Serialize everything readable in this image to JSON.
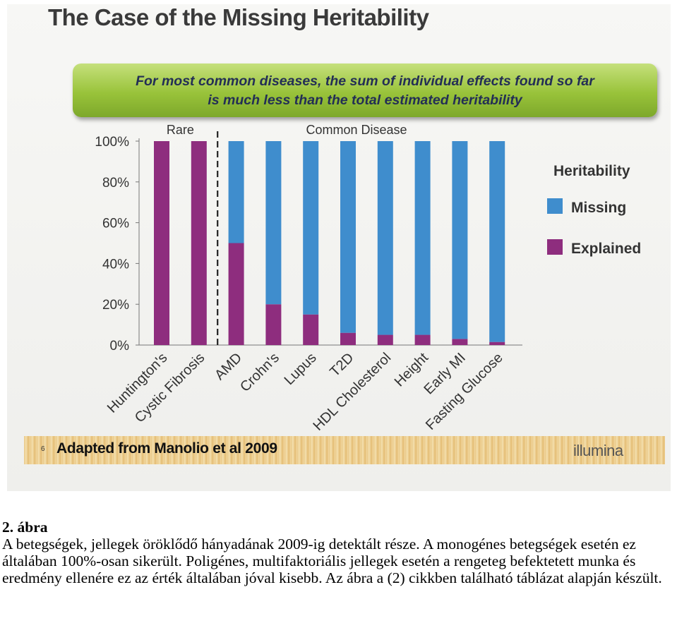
{
  "slide": {
    "title": "The Case of the Missing Heritability",
    "banner_line1": "For most common diseases, the sum of individual effects found so far",
    "banner_line2": "is much less than the total estimated heritability",
    "slide_number": "6",
    "source_note": "Adapted from Manolio et al 2009",
    "brand_logo": "illumina"
  },
  "colors": {
    "missing": "#3f8dcd",
    "explained": "#8e2d7e",
    "banner": "#99c33a"
  },
  "chart_data": {
    "type": "bar",
    "stacked": true,
    "categories": [
      "Huntington's",
      "Cystic Fibrosis",
      "AMD",
      "Crohn's",
      "Lupus",
      "T2D",
      "HDL Cholesterol",
      "Height",
      "Early MI",
      "Fasting Glucose"
    ],
    "series": [
      {
        "name": "Explained",
        "color": "#8e2d7e",
        "values": [
          100,
          100,
          50,
          20,
          15,
          6,
          5,
          5,
          3,
          1.5
        ]
      },
      {
        "name": "Missing",
        "color": "#3f8dcd",
        "values": [
          0,
          0,
          50,
          80,
          85,
          94,
          95,
          95,
          97,
          98.5
        ]
      }
    ],
    "groups": [
      {
        "label": "Rare"
      },
      {
        "label": "Common Disease"
      }
    ],
    "legend_title": "Heritability",
    "legend_position": "right",
    "y_ticks": [
      "0%",
      "20%",
      "40%",
      "60%",
      "80%",
      "100%"
    ],
    "ylim": [
      0,
      100
    ],
    "grid": false
  },
  "caption": {
    "heading": "2. ábra",
    "text": "A betegségek, jellegek öröklődő hányadának 2009-ig detektált része. A monogénes betegségek esetén ez általában 100%-osan sikerült. Poligénes, multifaktoriális jellegek esetén a rengeteg befektetett munka és eredmény ellenére ez az érték általában jóval kisebb. Az ábra a (2) cikkben található táblázat alapján készült."
  }
}
